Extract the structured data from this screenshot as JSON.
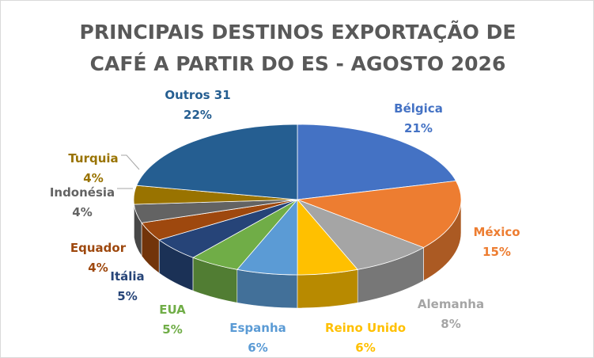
{
  "chart_data": {
    "type": "pie",
    "title_line1": "PRINCIPAIS DESTINOS EXPORTAÇÃO DE",
    "title_line2": "CAFÉ A PARTIR DO ES - AGOSTO 2026",
    "slices": [
      {
        "name": "Bélgica",
        "value": 21,
        "label": "21%",
        "color": "#4472c4"
      },
      {
        "name": "México",
        "value": 15,
        "label": "15%",
        "color": "#ed7d31"
      },
      {
        "name": "Alemanha",
        "value": 8,
        "label": "8%",
        "color": "#a5a5a5"
      },
      {
        "name": "Reino Unido",
        "value": 6,
        "label": "6%",
        "color": "#ffc000"
      },
      {
        "name": "Espanha",
        "value": 6,
        "label": "6%",
        "color": "#5b9bd5"
      },
      {
        "name": "EUA",
        "value": 5,
        "label": "5%",
        "color": "#70ad47"
      },
      {
        "name": "Itália",
        "value": 5,
        "label": "5%",
        "color": "#264478"
      },
      {
        "name": "Equador",
        "value": 4,
        "label": "4%",
        "color": "#9e480e"
      },
      {
        "name": "Indonésia",
        "value": 4,
        "label": "4%",
        "color": "#636363"
      },
      {
        "name": "Turquia",
        "value": 4,
        "label": "4%",
        "color": "#997300"
      },
      {
        "name": "Outros 31",
        "value": 22,
        "label": "22%",
        "color": "#255e91"
      }
    ],
    "legend": "none",
    "style": "3d-pie with data labels"
  }
}
